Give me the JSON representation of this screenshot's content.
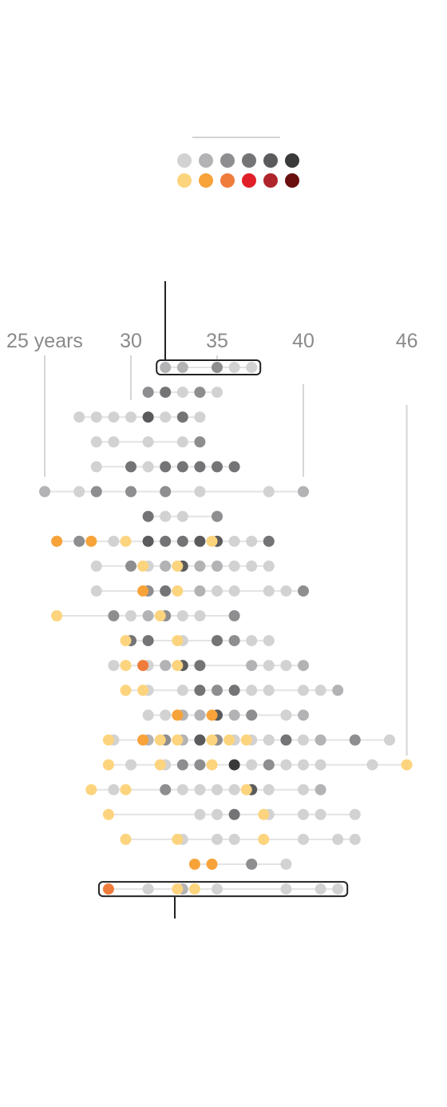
{
  "chart_data": {
    "type": "scatter",
    "x_axis": {
      "ticks": [
        {
          "value": 25,
          "label": "25 years"
        },
        {
          "value": 30,
          "label": "30"
        },
        {
          "value": 35,
          "label": "35"
        },
        {
          "value": 40,
          "label": "40"
        },
        {
          "value": 46,
          "label": "46"
        }
      ],
      "range": [
        25,
        46
      ]
    },
    "legend": {
      "grays": [
        "#d2d2d2",
        "#b3b3b5",
        "#8e8e90",
        "#747476",
        "#5b5b5d",
        "#3a3a3a"
      ],
      "warms": [
        "#fdd47e",
        "#f7a33a",
        "#f07c3c",
        "#e02028",
        "#b0252c",
        "#6a0e0e"
      ]
    },
    "rows": [
      [
        [
          32,
          "g2"
        ],
        [
          33,
          "g2"
        ],
        [
          35,
          "g3"
        ],
        [
          36,
          "g1"
        ],
        [
          37,
          "g1"
        ]
      ],
      [
        [
          31,
          "g3"
        ],
        [
          32,
          "g4"
        ],
        [
          33,
          "g1"
        ],
        [
          34,
          "g3"
        ],
        [
          35,
          "g1"
        ]
      ],
      [
        [
          27,
          "g1"
        ],
        [
          28,
          "g1"
        ],
        [
          29,
          "g1"
        ],
        [
          30,
          "g1"
        ],
        [
          31,
          "g5"
        ],
        [
          32,
          "g1"
        ],
        [
          33,
          "g4"
        ],
        [
          34,
          "g1"
        ]
      ],
      [
        [
          28,
          "g1"
        ],
        [
          29,
          "g1"
        ],
        [
          31,
          "g1"
        ],
        [
          33,
          "g1"
        ],
        [
          34,
          "g3"
        ]
      ],
      [
        [
          28,
          "g1"
        ],
        [
          30,
          "g4"
        ],
        [
          31,
          "g1"
        ],
        [
          32,
          "g4"
        ],
        [
          33,
          "g4"
        ],
        [
          34,
          "g4"
        ],
        [
          35,
          "g4"
        ],
        [
          36,
          "g4"
        ]
      ],
      [
        [
          25,
          "g2"
        ],
        [
          27,
          "g1"
        ],
        [
          28,
          "g3"
        ],
        [
          30,
          "g3"
        ],
        [
          32,
          "g3"
        ],
        [
          34,
          "g1"
        ],
        [
          38,
          "g1"
        ],
        [
          40,
          "g2"
        ]
      ],
      [
        [
          31,
          "g4"
        ],
        [
          32,
          "g1"
        ],
        [
          33,
          "g1"
        ],
        [
          35,
          "g3"
        ]
      ],
      [
        [
          25.7,
          "g1"
        ],
        [
          25.7,
          "o2"
        ],
        [
          27,
          "g3"
        ],
        [
          27.7,
          "o2"
        ],
        [
          29,
          "g1"
        ],
        [
          29.7,
          "o1"
        ],
        [
          31,
          "g5"
        ],
        [
          32,
          "g4"
        ],
        [
          33,
          "g4"
        ],
        [
          34,
          "g5"
        ],
        [
          35,
          "g5"
        ],
        [
          34.7,
          "o1"
        ],
        [
          36,
          "g1"
        ],
        [
          37,
          "g1"
        ],
        [
          38,
          "g4"
        ]
      ],
      [
        [
          28,
          "g1"
        ],
        [
          30,
          "g3"
        ],
        [
          30.7,
          "o1"
        ],
        [
          31,
          "g1"
        ],
        [
          32,
          "g2"
        ],
        [
          33,
          "g5"
        ],
        [
          32.7,
          "o1"
        ],
        [
          34,
          "g2"
        ],
        [
          35,
          "g2"
        ],
        [
          36,
          "g1"
        ],
        [
          37,
          "g1"
        ],
        [
          38,
          "g1"
        ]
      ],
      [
        [
          28,
          "g1"
        ],
        [
          31,
          "g3"
        ],
        [
          30.7,
          "o2"
        ],
        [
          32,
          "g4"
        ],
        [
          32.7,
          "o1"
        ],
        [
          34,
          "g2"
        ],
        [
          35,
          "g1"
        ],
        [
          36,
          "g1"
        ],
        [
          38,
          "g1"
        ],
        [
          39,
          "g1"
        ],
        [
          40,
          "g3"
        ]
      ],
      [
        [
          25.7,
          "o1"
        ],
        [
          29,
          "g3"
        ],
        [
          30,
          "g1"
        ],
        [
          31,
          "g2"
        ],
        [
          32,
          "g3"
        ],
        [
          31.7,
          "o1"
        ],
        [
          33,
          "g1"
        ],
        [
          34,
          "g1"
        ],
        [
          36,
          "g3"
        ]
      ],
      [
        [
          30,
          "g4"
        ],
        [
          29.7,
          "o1"
        ],
        [
          31,
          "g4"
        ],
        [
          33,
          "g1"
        ],
        [
          32.7,
          "o1"
        ],
        [
          35,
          "g4"
        ],
        [
          36,
          "g3"
        ],
        [
          37,
          "g1"
        ],
        [
          38,
          "g1"
        ]
      ],
      [
        [
          29,
          "g1"
        ],
        [
          29.7,
          "o1"
        ],
        [
          31,
          "g1"
        ],
        [
          30.7,
          "o3"
        ],
        [
          32,
          "g2"
        ],
        [
          33,
          "g5"
        ],
        [
          32.7,
          "o1"
        ],
        [
          34,
          "g4"
        ],
        [
          37,
          "g2"
        ],
        [
          38,
          "g1"
        ],
        [
          39,
          "g1"
        ],
        [
          40,
          "g2"
        ]
      ],
      [
        [
          29.7,
          "o1"
        ],
        [
          31,
          "g1"
        ],
        [
          30.7,
          "o1"
        ],
        [
          33,
          "g1"
        ],
        [
          34,
          "g4"
        ],
        [
          35,
          "g3"
        ],
        [
          36,
          "g4"
        ],
        [
          37,
          "g1"
        ],
        [
          38,
          "g1"
        ],
        [
          40,
          "g1"
        ],
        [
          41,
          "g1"
        ],
        [
          42,
          "g2"
        ]
      ],
      [
        [
          31,
          "g1"
        ],
        [
          32,
          "g1"
        ],
        [
          33,
          "g2"
        ],
        [
          32.7,
          "o2"
        ],
        [
          34,
          "g2"
        ],
        [
          35,
          "g5"
        ],
        [
          34.7,
          "o2"
        ],
        [
          36,
          "g2"
        ],
        [
          37,
          "g3"
        ],
        [
          39,
          "g1"
        ],
        [
          40,
          "g2"
        ]
      ],
      [
        [
          29,
          "g1"
        ],
        [
          28.7,
          "o1"
        ],
        [
          31,
          "g2"
        ],
        [
          30.7,
          "o2"
        ],
        [
          32,
          "g3"
        ],
        [
          31.7,
          "o1"
        ],
        [
          33,
          "g2"
        ],
        [
          32.7,
          "o1"
        ],
        [
          34,
          "g5"
        ],
        [
          35,
          "g3"
        ],
        [
          34.7,
          "o1"
        ],
        [
          36,
          "g1"
        ],
        [
          35.7,
          "o1"
        ],
        [
          37,
          "g1"
        ],
        [
          36.7,
          "o1"
        ],
        [
          38,
          "g1"
        ],
        [
          39,
          "g4"
        ],
        [
          40,
          "g1"
        ],
        [
          41,
          "g2"
        ],
        [
          43,
          "g3"
        ],
        [
          45,
          "g1"
        ]
      ],
      [
        [
          28.7,
          "o1"
        ],
        [
          30,
          "g1"
        ],
        [
          32,
          "g1"
        ],
        [
          31.7,
          "o1"
        ],
        [
          33,
          "g3"
        ],
        [
          34,
          "g3"
        ],
        [
          34.7,
          "o1"
        ],
        [
          36,
          "g6"
        ],
        [
          37,
          "g1"
        ],
        [
          38,
          "g3"
        ],
        [
          39,
          "g1"
        ],
        [
          40,
          "g1"
        ],
        [
          41,
          "g1"
        ],
        [
          44,
          "g1"
        ],
        [
          46,
          "o1"
        ]
      ],
      [
        [
          27.7,
          "o1"
        ],
        [
          29,
          "g1"
        ],
        [
          29.7,
          "o1"
        ],
        [
          32,
          "g3"
        ],
        [
          33,
          "g1"
        ],
        [
          34,
          "g1"
        ],
        [
          35,
          "g1"
        ],
        [
          36,
          "g1"
        ],
        [
          37,
          "g5"
        ],
        [
          36.7,
          "o1"
        ],
        [
          38,
          "g1"
        ],
        [
          40,
          "g1"
        ],
        [
          41,
          "g2"
        ]
      ],
      [
        [
          28.7,
          "o1"
        ],
        [
          34,
          "g1"
        ],
        [
          35,
          "g1"
        ],
        [
          36,
          "g4"
        ],
        [
          38,
          "g1"
        ],
        [
          37.7,
          "o1"
        ],
        [
          40,
          "g1"
        ],
        [
          41,
          "g1"
        ],
        [
          43,
          "g1"
        ]
      ],
      [
        [
          29.7,
          "o1"
        ],
        [
          33,
          "g1"
        ],
        [
          32.7,
          "o1"
        ],
        [
          35,
          "g1"
        ],
        [
          36,
          "g1"
        ],
        [
          37.7,
          "o1"
        ],
        [
          40,
          "g1"
        ],
        [
          42,
          "g1"
        ],
        [
          43,
          "g1"
        ]
      ],
      [
        [
          33.7,
          "o2"
        ],
        [
          34.7,
          "o2"
        ],
        [
          37,
          "g3"
        ],
        [
          39,
          "g1"
        ]
      ],
      [
        [
          28.7,
          "o3"
        ],
        [
          31,
          "g1"
        ],
        [
          33,
          "g2"
        ],
        [
          32.7,
          "o1"
        ],
        [
          33.7,
          "o1"
        ],
        [
          35,
          "g1"
        ],
        [
          39,
          "g1"
        ],
        [
          41,
          "g1"
        ],
        [
          42,
          "g1"
        ]
      ]
    ]
  }
}
